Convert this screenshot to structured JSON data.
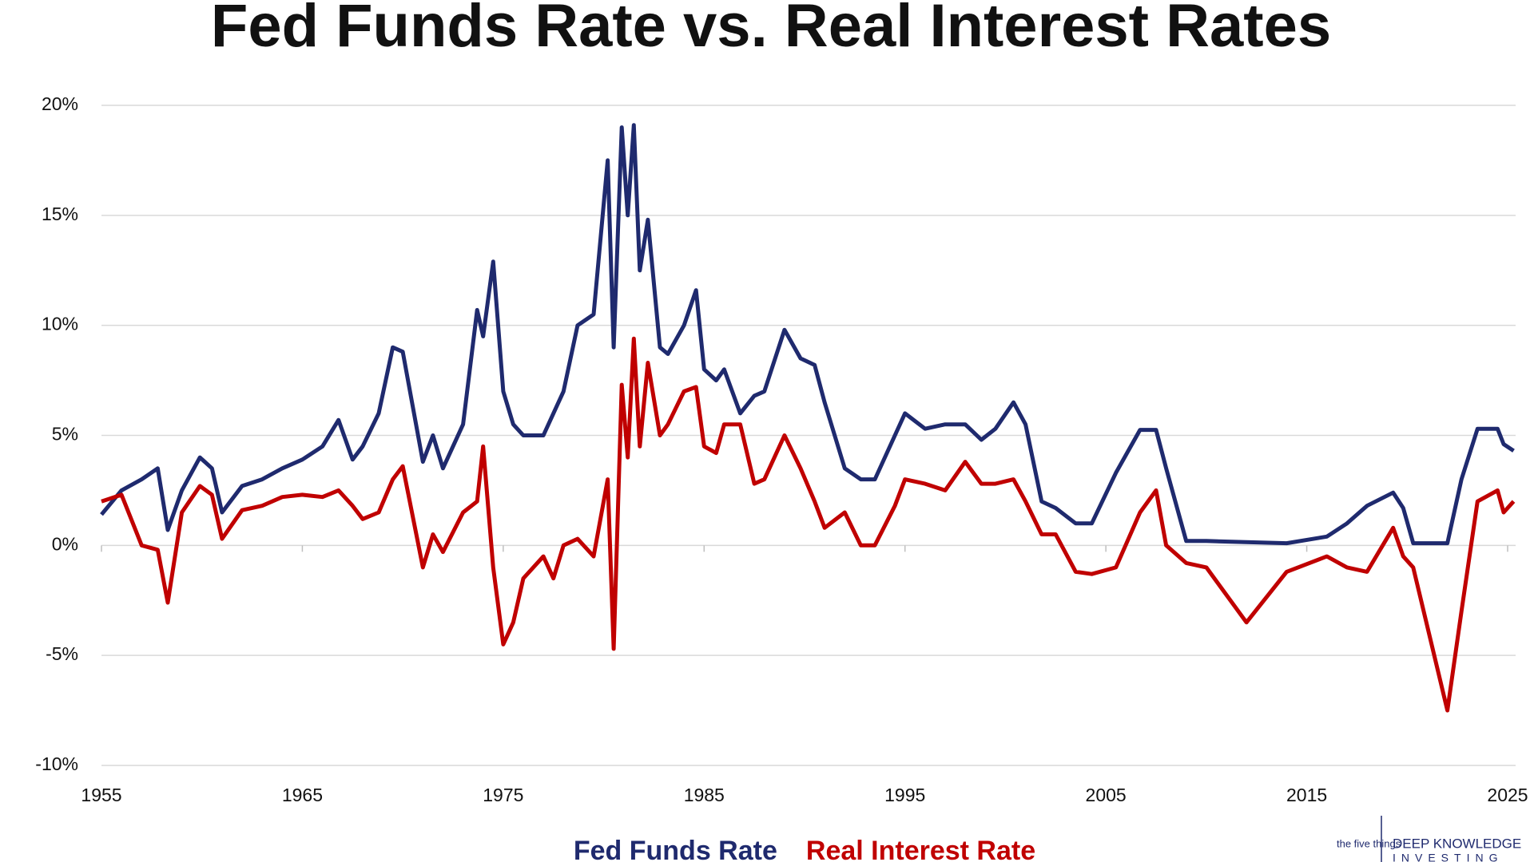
{
  "chart_data": {
    "type": "line",
    "title": "Fed Funds Rate vs. Real Interest Rates",
    "x": [
      1955,
      1956,
      1957,
      1957.8,
      1958.3,
      1959,
      1959.9,
      1960.5,
      1961,
      1962,
      1963,
      1964,
      1965,
      1966,
      1966.8,
      1967.5,
      1968,
      1968.8,
      1969.5,
      1970,
      1971,
      1971.5,
      1972,
      1973,
      1973.7,
      1974,
      1974.5,
      1975,
      1975.5,
      1976,
      1977,
      1977.5,
      1978,
      1978.7,
      1979.5,
      1980.2,
      1980.5,
      1980.9,
      1981.2,
      1981.5,
      1981.8,
      1982.2,
      1982.8,
      1983.2,
      1984,
      1984.6,
      1985,
      1985.6,
      1986,
      1986.8,
      1987.5,
      1988,
      1989,
      1989.8,
      1990.5,
      1991,
      1992,
      1992.8,
      1993.5,
      1994.5,
      1995,
      1996,
      1997,
      1998,
      1998.8,
      1999.5,
      2000.4,
      2001,
      2001.8,
      2002.5,
      2003.5,
      2004.3,
      2005.5,
      2006.7,
      2007.5,
      2008,
      2009,
      2010,
      2012,
      2014,
      2016,
      2017,
      2018,
      2019.3,
      2019.8,
      2020.3,
      2022,
      2022.7,
      2023.5,
      2024.5,
      2024.8,
      2025.3
    ],
    "series": [
      {
        "name": "Fed Funds Rate",
        "color": "#1f2a6e",
        "values": [
          1.4,
          2.5,
          3.0,
          3.5,
          0.7,
          2.5,
          4.0,
          3.5,
          1.5,
          2.7,
          3.0,
          3.5,
          3.9,
          4.5,
          5.7,
          3.9,
          4.5,
          6.0,
          9.0,
          8.8,
          3.8,
          5.0,
          3.5,
          5.5,
          10.7,
          9.5,
          12.9,
          7.0,
          5.5,
          5.0,
          5.0,
          6.0,
          7.0,
          10.0,
          10.5,
          17.5,
          9.0,
          19.0,
          15.0,
          19.1,
          12.5,
          14.8,
          9.0,
          8.7,
          10.0,
          11.6,
          8.0,
          7.5,
          8.0,
          6.0,
          6.8,
          7.0,
          9.8,
          8.5,
          8.2,
          6.5,
          3.5,
          3.0,
          3.0,
          5.0,
          6.0,
          5.3,
          5.5,
          5.5,
          4.8,
          5.3,
          6.5,
          5.5,
          2.0,
          1.7,
          1.0,
          1.0,
          3.3,
          5.25,
          5.25,
          3.5,
          0.2,
          0.2,
          0.15,
          0.1,
          0.4,
          1.0,
          1.8,
          2.4,
          1.7,
          0.1,
          0.1,
          3.0,
          5.3,
          5.3,
          4.6,
          4.3
        ]
      },
      {
        "name": "Real Interest Rate",
        "color": "#c00000",
        "values": [
          2.0,
          2.3,
          0.0,
          -0.2,
          -2.6,
          1.5,
          2.7,
          2.3,
          0.3,
          1.6,
          1.8,
          2.2,
          2.3,
          2.2,
          2.5,
          1.8,
          1.2,
          1.5,
          3.0,
          3.6,
          -1.0,
          0.5,
          -0.3,
          1.5,
          2.0,
          4.5,
          -1.0,
          -4.5,
          -3.5,
          -1.5,
          -0.5,
          -1.5,
          0.0,
          0.3,
          -0.5,
          3.0,
          -4.7,
          7.3,
          4.0,
          9.4,
          4.5,
          8.3,
          5.0,
          5.5,
          7.0,
          7.2,
          4.5,
          4.2,
          5.5,
          5.5,
          2.8,
          3.0,
          5.0,
          3.5,
          2.0,
          0.8,
          1.5,
          0.0,
          0.0,
          1.8,
          3.0,
          2.8,
          2.5,
          3.8,
          2.8,
          2.8,
          3.0,
          2.0,
          0.5,
          0.5,
          -1.2,
          -1.3,
          -1.0,
          1.5,
          2.5,
          0.0,
          -0.8,
          -1.0,
          -3.5,
          -1.2,
          -0.5,
          -1.0,
          -1.2,
          0.8,
          -0.5,
          -1.0,
          -7.5,
          -3.0,
          2.0,
          2.5,
          1.5,
          2.0
        ]
      }
    ],
    "xlim": [
      1955,
      2025
    ],
    "xticks": [
      1955,
      1965,
      1975,
      1985,
      1995,
      2005,
      2015,
      2025
    ],
    "ylim": [
      -10,
      20
    ],
    "yticks": [
      {
        "value": -10,
        "label": "-10%"
      },
      {
        "value": -5,
        "label": "-5%"
      },
      {
        "value": 0,
        "label": "0%"
      },
      {
        "value": 5,
        "label": "5%"
      },
      {
        "value": 10,
        "label": "10%"
      },
      {
        "value": 15,
        "label": "15%"
      },
      {
        "value": 20,
        "label": "20%"
      }
    ],
    "grid": true
  },
  "logo": {
    "mark": "the five things",
    "line1": "DEEP KNOWLEDGE",
    "line2": "INVESTING"
  }
}
